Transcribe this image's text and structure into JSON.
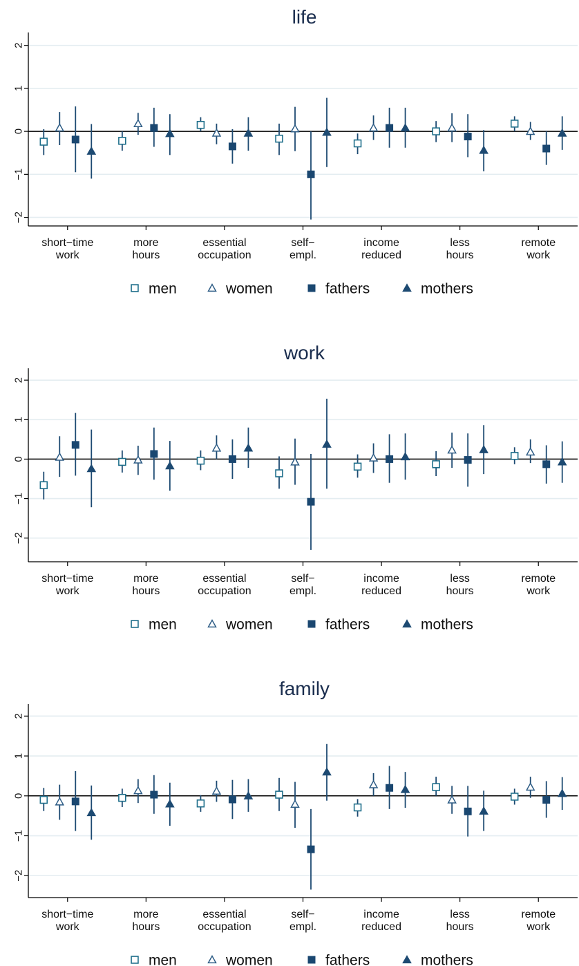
{
  "colors": {
    "men": "#1f6f8b",
    "women": "#2e5d86",
    "fathers": "#1a4770",
    "mothers": "#1d4a72",
    "ci": "#1d4a72",
    "grid": "#e4edf1",
    "axis": "#000000",
    "title": "#1a2d4e"
  },
  "legend": [
    {
      "key": "men",
      "label": "men",
      "marker": "hollow-square"
    },
    {
      "key": "women",
      "label": "women",
      "marker": "hollow-triangle"
    },
    {
      "key": "fathers",
      "label": "fathers",
      "marker": "filled-square"
    },
    {
      "key": "mothers",
      "label": "mothers",
      "marker": "filled-triangle"
    }
  ],
  "chart_data": [
    {
      "type": "scatter",
      "title": "life",
      "ylim": [
        -2.2,
        2.3
      ],
      "yticks": [
        -2,
        -1,
        0,
        1,
        2
      ],
      "ytick_labels": [
        "−2",
        "−1",
        "0",
        "1",
        "2"
      ],
      "grid": true,
      "legend_position": "bottom",
      "categories": [
        [
          "short−time",
          "work"
        ],
        [
          "more",
          "hours"
        ],
        [
          "essential",
          "occupation"
        ],
        [
          "self−",
          "empl."
        ],
        [
          "income",
          "reduced"
        ],
        [
          "less",
          "hours"
        ],
        [
          "remote",
          "work"
        ]
      ],
      "series": [
        {
          "name": "men",
          "marker": "hollow-square",
          "values": [
            -0.24,
            -0.22,
            0.15,
            -0.17,
            -0.28,
            0.0,
            0.18
          ],
          "ci_low": [
            -0.55,
            -0.45,
            0.0,
            -0.55,
            -0.53,
            -0.25,
            0.0
          ],
          "ci_high": [
            0.05,
            0.0,
            0.33,
            0.18,
            -0.05,
            0.24,
            0.35
          ]
        },
        {
          "name": "women",
          "marker": "hollow-triangle",
          "values": [
            0.08,
            0.18,
            -0.04,
            0.06,
            0.08,
            0.08,
            0.0
          ],
          "ci_low": [
            -0.32,
            -0.08,
            -0.3,
            -0.46,
            -0.2,
            -0.25,
            -0.2
          ],
          "ci_high": [
            0.45,
            0.43,
            0.18,
            0.57,
            0.37,
            0.42,
            0.22
          ]
        },
        {
          "name": "fathers",
          "marker": "filled-square",
          "values": [
            -0.19,
            0.08,
            -0.35,
            -1.0,
            0.08,
            -0.12,
            -0.4
          ],
          "ci_low": [
            -0.95,
            -0.36,
            -0.75,
            -2.05,
            -0.38,
            -0.6,
            -0.78
          ],
          "ci_high": [
            0.58,
            0.55,
            0.05,
            0.0,
            0.55,
            0.4,
            0.0
          ]
        },
        {
          "name": "mothers",
          "marker": "filled-triangle",
          "values": [
            -0.46,
            -0.05,
            -0.04,
            -0.02,
            0.08,
            -0.44,
            -0.04
          ],
          "ci_low": [
            -1.1,
            -0.55,
            -0.45,
            -0.83,
            -0.38,
            -0.93,
            -0.43
          ],
          "ci_high": [
            0.17,
            0.4,
            0.33,
            0.78,
            0.55,
            0.03,
            0.35
          ]
        }
      ]
    },
    {
      "type": "scatter",
      "title": "work",
      "ylim": [
        -2.6,
        2.3
      ],
      "yticks": [
        -2,
        -1,
        0,
        1,
        2
      ],
      "ytick_labels": [
        "−2",
        "−1",
        "0",
        "1",
        "2"
      ],
      "grid": true,
      "legend_position": "bottom",
      "categories": [
        [
          "short−time",
          "work"
        ],
        [
          "more",
          "hours"
        ],
        [
          "essential",
          "occupation"
        ],
        [
          "self−",
          "empl."
        ],
        [
          "income",
          "reduced"
        ],
        [
          "less",
          "hours"
        ],
        [
          "remote",
          "work"
        ]
      ],
      "series": [
        {
          "name": "men",
          "marker": "hollow-square",
          "values": [
            -0.66,
            -0.07,
            -0.04,
            -0.36,
            -0.19,
            -0.13,
            0.08
          ],
          "ci_low": [
            -1.02,
            -0.34,
            -0.28,
            -0.75,
            -0.47,
            -0.43,
            -0.13
          ],
          "ci_high": [
            -0.32,
            0.22,
            0.22,
            0.07,
            0.12,
            0.2,
            0.3
          ]
        },
        {
          "name": "women",
          "marker": "hollow-triangle",
          "values": [
            0.05,
            -0.02,
            0.28,
            -0.07,
            0.03,
            0.23,
            0.18
          ],
          "ci_low": [
            -0.45,
            -0.4,
            0.0,
            -0.65,
            -0.35,
            -0.22,
            -0.1
          ],
          "ci_high": [
            0.58,
            0.34,
            0.6,
            0.52,
            0.4,
            0.67,
            0.5
          ]
        },
        {
          "name": "fathers",
          "marker": "filled-square",
          "values": [
            0.36,
            0.13,
            0.0,
            -1.08,
            0.0,
            -0.02,
            -0.13
          ],
          "ci_low": [
            -0.42,
            -0.52,
            -0.5,
            -2.3,
            -0.6,
            -0.7,
            -0.62
          ],
          "ci_high": [
            1.17,
            0.8,
            0.5,
            0.13,
            0.63,
            0.65,
            0.35
          ]
        },
        {
          "name": "mothers",
          "marker": "filled-triangle",
          "values": [
            -0.24,
            -0.17,
            0.28,
            0.38,
            0.06,
            0.24,
            -0.07
          ],
          "ci_low": [
            -1.22,
            -0.8,
            -0.22,
            -0.75,
            -0.52,
            -0.38,
            -0.6
          ],
          "ci_high": [
            0.75,
            0.46,
            0.8,
            1.53,
            0.65,
            0.86,
            0.45
          ]
        }
      ]
    },
    {
      "type": "scatter",
      "title": "family",
      "ylim": [
        -2.55,
        2.3
      ],
      "yticks": [
        -2,
        -1,
        0,
        1,
        2
      ],
      "ytick_labels": [
        "−2",
        "−1",
        "0",
        "1",
        "2"
      ],
      "grid": true,
      "legend_position": "bottom",
      "categories": [
        [
          "short−time",
          "work"
        ],
        [
          "more",
          "hours"
        ],
        [
          "essential",
          "occupation"
        ],
        [
          "self−",
          "empl."
        ],
        [
          "income",
          "reduced"
        ],
        [
          "less",
          "hours"
        ],
        [
          "remote",
          "work"
        ]
      ],
      "series": [
        {
          "name": "men",
          "marker": "hollow-square",
          "values": [
            -0.1,
            -0.05,
            -0.19,
            0.03,
            -0.29,
            0.22,
            -0.02
          ],
          "ci_low": [
            -0.38,
            -0.28,
            -0.4,
            -0.38,
            -0.52,
            0.0,
            -0.22
          ],
          "ci_high": [
            0.2,
            0.18,
            0.02,
            0.45,
            -0.08,
            0.48,
            0.18
          ]
        },
        {
          "name": "women",
          "marker": "hollow-triangle",
          "values": [
            -0.15,
            0.13,
            0.12,
            -0.21,
            0.28,
            -0.1,
            0.22
          ],
          "ci_low": [
            -0.6,
            -0.18,
            -0.15,
            -0.8,
            0.0,
            -0.45,
            -0.05
          ],
          "ci_high": [
            0.28,
            0.42,
            0.38,
            0.35,
            0.57,
            0.25,
            0.48
          ]
        },
        {
          "name": "fathers",
          "marker": "filled-square",
          "values": [
            -0.14,
            0.03,
            -0.09,
            -1.34,
            0.2,
            -0.39,
            -0.1
          ],
          "ci_low": [
            -0.88,
            -0.45,
            -0.58,
            -2.35,
            -0.33,
            -1.02,
            -0.55
          ],
          "ci_high": [
            0.62,
            0.52,
            0.4,
            -0.33,
            0.75,
            0.25,
            0.37
          ]
        },
        {
          "name": "mothers",
          "marker": "filled-triangle",
          "values": [
            -0.42,
            -0.2,
            0.0,
            0.6,
            0.16,
            -0.38,
            0.06
          ],
          "ci_low": [
            -1.1,
            -0.75,
            -0.4,
            -0.12,
            -0.3,
            -0.88,
            -0.35
          ],
          "ci_high": [
            0.26,
            0.33,
            0.42,
            1.3,
            0.6,
            0.13,
            0.47
          ]
        }
      ]
    }
  ]
}
